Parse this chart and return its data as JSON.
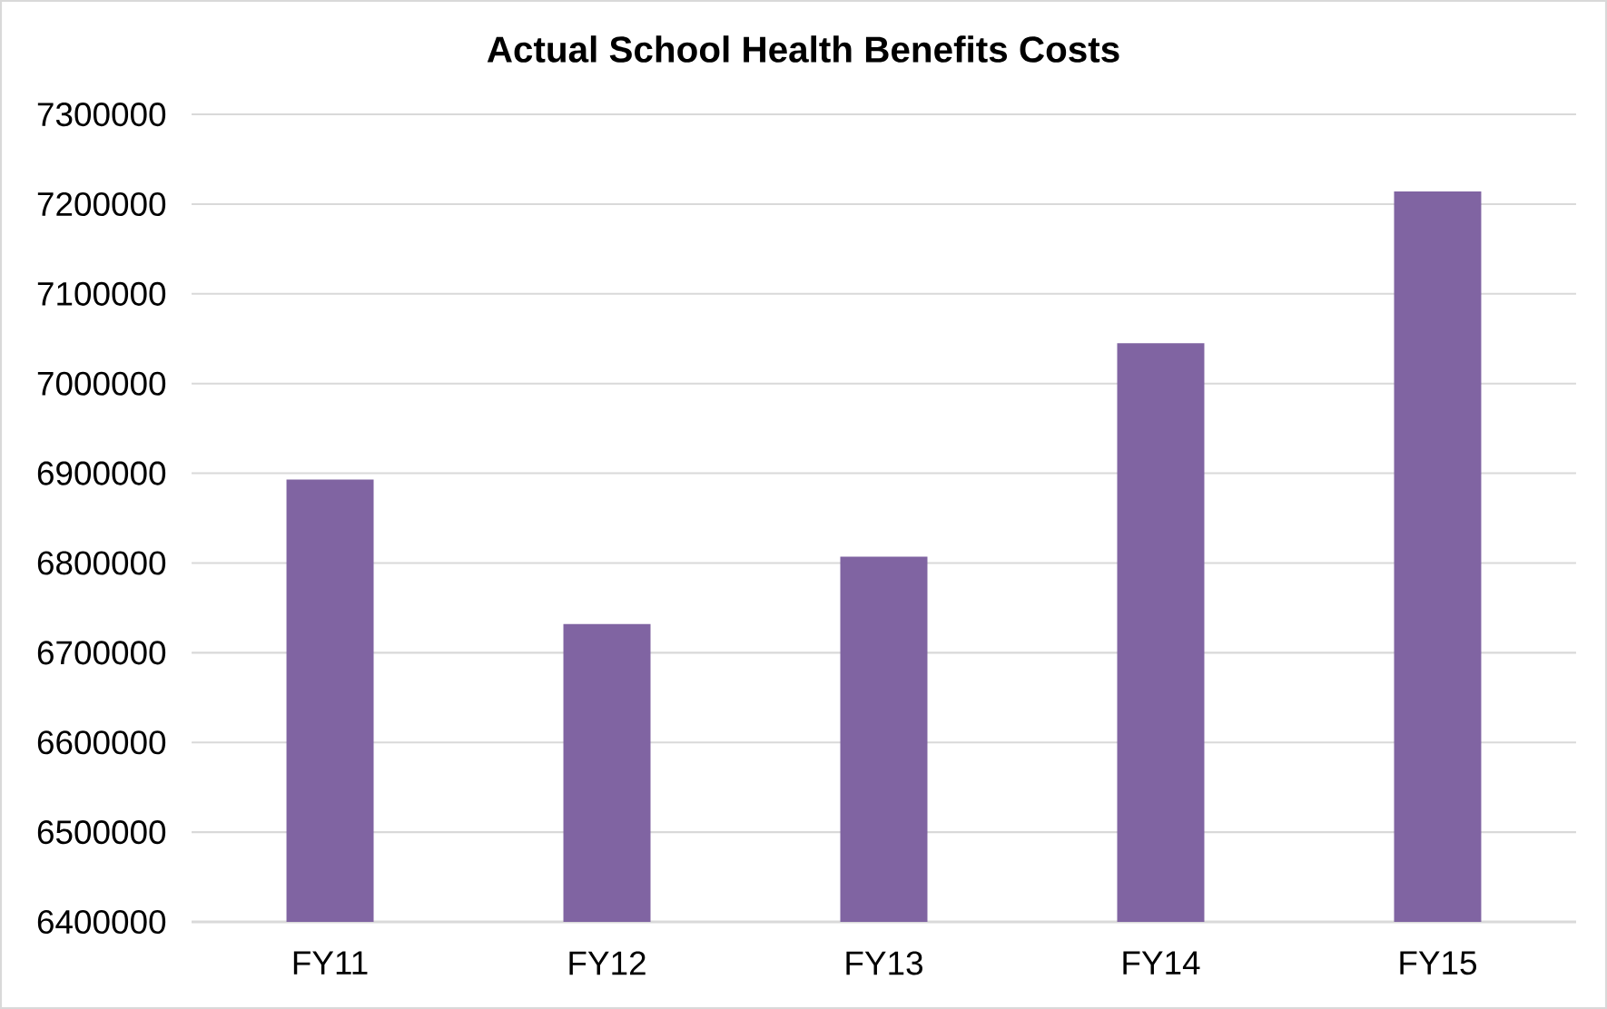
{
  "chart_data": {
    "type": "bar",
    "title": "Actual School Health Benefits Costs",
    "categories": [
      "FY11",
      "FY12",
      "FY13",
      "FY14",
      "FY15"
    ],
    "values": [
      6893000,
      6732000,
      6807000,
      7045000,
      7214000
    ],
    "color": "#8064a2",
    "ylim": [
      6400000,
      7300000
    ],
    "yticks": [
      6400000,
      6500000,
      6600000,
      6700000,
      6800000,
      6900000,
      7000000,
      7100000,
      7200000,
      7300000
    ],
    "grid": "y"
  }
}
